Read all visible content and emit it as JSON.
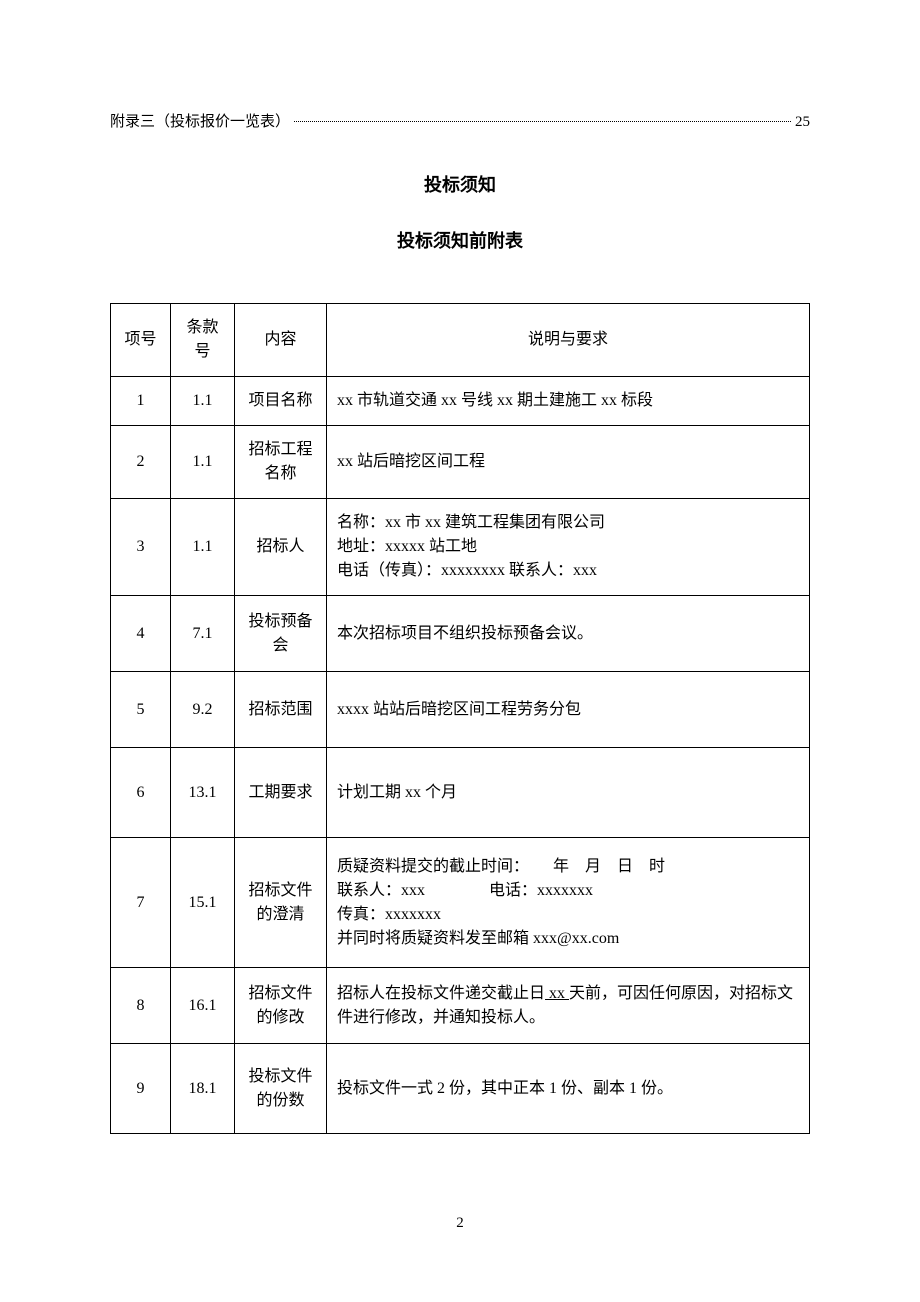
{
  "toc": {
    "label": "附录三（投标报价一览表）",
    "page": "25"
  },
  "heading1": "投标须知",
  "heading2": "投标须知前附表",
  "table": {
    "headers": {
      "xh": "项号",
      "tkh": "条款号",
      "nr": "内容",
      "sm": "说明与要求"
    },
    "rows": [
      {
        "xh": "1",
        "tkh": "1.1",
        "nr": "项目名称",
        "sm": "xx 市轨道交通 xx 号线 xx 期土建施工 xx 标段"
      },
      {
        "xh": "2",
        "tkh": "1.1",
        "nr": "招标工程名称",
        "sm": "xx 站后暗挖区间工程"
      },
      {
        "xh": "3",
        "tkh": "1.1",
        "nr": "招标人",
        "sm": "名称：xx 市 xx 建筑工程集团有限公司\n地址：xxxxx 站工地\n电话（传真）：xxxxxxxx 联系人：xxx"
      },
      {
        "xh": "4",
        "tkh": "7.1",
        "nr": "投标预备会",
        "sm": "本次招标项目不组织投标预备会议。"
      },
      {
        "xh": "5",
        "tkh": "9.2",
        "nr": "招标范围",
        "sm": "xxxx 站站后暗挖区间工程劳务分包"
      },
      {
        "xh": "6",
        "tkh": "13.1",
        "nr": "工期要求",
        "sm": "计划工期 xx 个月"
      },
      {
        "xh": "7",
        "tkh": "15.1",
        "nr": "招标文件的澄清",
        "sm": "质疑资料提交的截止时间：　　年　月　日　时\n联系人：xxx　　　　电话：xxxxxxx\n传真：xxxxxxx\n并同时将质疑资料发至邮箱 xxx@xx.com"
      },
      {
        "xh": "8",
        "tkh": "16.1",
        "nr": "招标文件的修改",
        "sm_pre": "招标人在投标文件递交截止日",
        "sm_underline": " xx ",
        "sm_post": "天前，可因任何原因，对招标文件进行修改，并通知投标人。"
      },
      {
        "xh": "9",
        "tkh": "18.1",
        "nr": "投标文件的份数",
        "sm": "投标文件一式 2 份，其中正本 1 份、副本 1 份。"
      }
    ]
  },
  "page_number": "2"
}
